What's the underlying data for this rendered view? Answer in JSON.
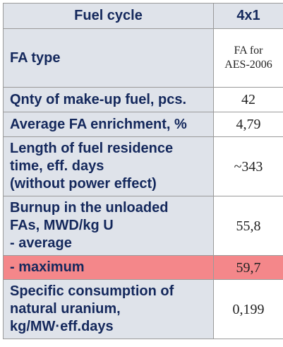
{
  "header": {
    "param_label": "Fuel cycle",
    "value_label": "4x1"
  },
  "rows": [
    {
      "param_lines": [
        "FA type"
      ],
      "value_lines": [
        "FA for",
        "AES-2006"
      ]
    },
    {
      "param_lines": [
        "Qnty of make-up fuel, pcs."
      ],
      "value_lines": [
        "42"
      ]
    },
    {
      "param_lines": [
        "Average FA enrichment, %"
      ],
      "value_lines": [
        "4,79"
      ]
    },
    {
      "param_lines": [
        "Length of fuel residence",
        "time, eff. days",
        "(without power effect)"
      ],
      "value_lines": [
        "~343"
      ]
    },
    {
      "param_lines": [
        "Burnup in the unloaded",
        "FAs, MWD/kg U",
        "- average"
      ],
      "value_lines": [
        "55,8"
      ]
    },
    {
      "param_lines": [
        "- maximum"
      ],
      "value_lines": [
        "59,7"
      ],
      "highlight_color": "#f4878a"
    },
    {
      "param_lines": [
        "Specific consumption of",
        "natural uranium,",
        "kg/MW·eff.days"
      ],
      "value_lines": [
        "0,199"
      ]
    }
  ],
  "colors": {
    "label_bg": "#dfe3ea",
    "label_text": "#14285c",
    "border": "#9a9a9a",
    "highlight": "#f4878a"
  }
}
